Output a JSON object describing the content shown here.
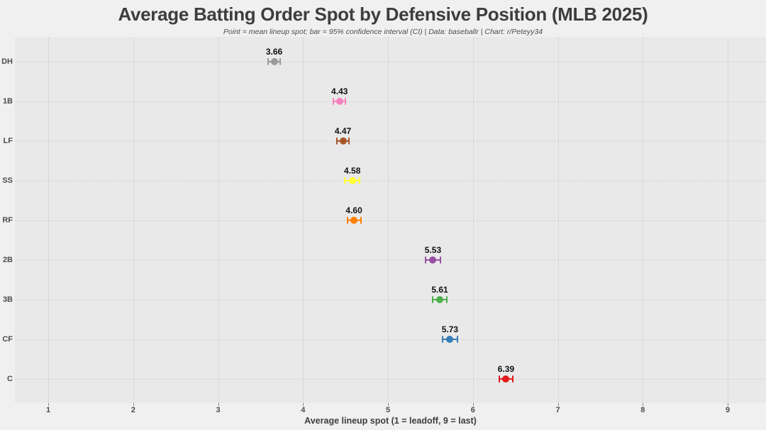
{
  "chart": {
    "title": "Average Batting Order Spot by Defensive Position (MLB 2025)",
    "subtitle": "Point = mean lineup spot; bar = 95% confidence interval (CI) | Data: baseballr | Chart: r/Peteyy34",
    "xlabel": "Average lineup spot (1 = leadoff, 9 = last)"
  },
  "chart_data": {
    "type": "scatter",
    "subtype": "horizontal-dot-with-ci-error-bars",
    "categories": [
      "DH",
      "1B",
      "LF",
      "SS",
      "RF",
      "2B",
      "3B",
      "CF",
      "C"
    ],
    "values": [
      3.66,
      4.43,
      4.47,
      4.58,
      4.6,
      5.53,
      5.61,
      5.73,
      6.39
    ],
    "value_labels": [
      "3.66",
      "4.43",
      "4.47",
      "4.58",
      "4.60",
      "5.53",
      "5.61",
      "5.73",
      "6.39"
    ],
    "ci_half_width": [
      0.07,
      0.07,
      0.07,
      0.09,
      0.08,
      0.09,
      0.08,
      0.09,
      0.08
    ],
    "point_colors": [
      "#999999",
      "#F781BF",
      "#A65628",
      "#FFFF33",
      "#FF7F00",
      "#984EA3",
      "#4DAF4A",
      "#377EB8",
      "#E41A1C"
    ],
    "x_ticks": [
      1,
      2,
      3,
      4,
      5,
      6,
      7,
      8,
      9
    ],
    "xlim": [
      1,
      9
    ],
    "title": "Average Batting Order Spot by Defensive Position (MLB 2025)",
    "subtitle": "Point = mean lineup spot; bar = 95% confidence interval (CI) | Data: baseballr | Chart: r/Peteyy34",
    "xlabel": "Average lineup spot (1 = leadoff, 9 = last)",
    "ylabel": "",
    "legend": "none",
    "grid": "solid vertical major gridlines at each integer; dotted horizontal guide line at each category row"
  },
  "colors": {
    "page_bg": "#f0f0f0",
    "panel_bg": "#e9e9e9",
    "gridline": "#d9d9d9",
    "tick_mark": "#8a8a8a",
    "title_text": "#3d3d3d",
    "subtitle_text": "#4c4c4c",
    "axis_text": "#4d4d4d",
    "value_label_text": "#111111"
  }
}
